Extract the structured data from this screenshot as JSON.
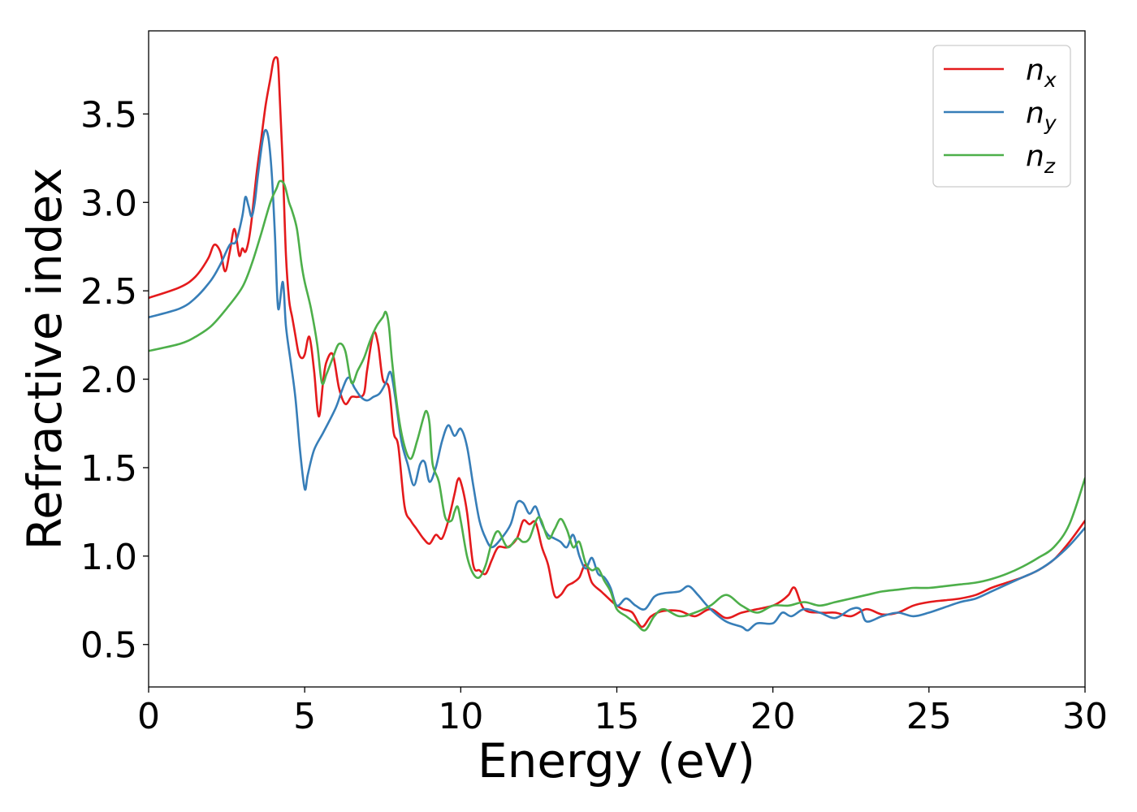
{
  "chart_data": {
    "type": "line",
    "xlabel": "Energy (eV)",
    "ylabel": "Refractive index",
    "xlim": [
      0,
      30
    ],
    "ylim": [
      0.26,
      3.97
    ],
    "xticks": [
      0,
      5,
      10,
      15,
      20,
      25,
      30
    ],
    "xtick_labels": [
      "0",
      "5",
      "10",
      "15",
      "20",
      "25",
      "30"
    ],
    "yticks": [
      0.5,
      1.0,
      1.5,
      2.0,
      2.5,
      3.0,
      3.5
    ],
    "ytick_labels": [
      "0.5",
      "1.0",
      "1.5",
      "2.0",
      "2.5",
      "3.0",
      "3.5"
    ],
    "legend_position": "top-right",
    "grid": false,
    "series": [
      {
        "name": "n",
        "subscript": "x",
        "color": "#e41a1c",
        "x": [
          0,
          1,
          1.5,
          1.9,
          2.1,
          2.3,
          2.45,
          2.6,
          2.75,
          2.9,
          3.0,
          3.1,
          3.2,
          3.3,
          3.45,
          3.6,
          3.75,
          3.9,
          4.0,
          4.1,
          4.15,
          4.2,
          4.3,
          4.4,
          4.5,
          4.6,
          4.7,
          4.8,
          4.9,
          5.0,
          5.15,
          5.3,
          5.45,
          5.6,
          5.7,
          5.9,
          6.1,
          6.3,
          6.5,
          6.7,
          6.9,
          7.0,
          7.2,
          7.35,
          7.5,
          7.7,
          7.85,
          8.0,
          8.2,
          8.4,
          8.6,
          8.8,
          9.0,
          9.2,
          9.4,
          9.6,
          9.8,
          9.9,
          10.0,
          10.2,
          10.4,
          10.6,
          10.8,
          11.0,
          11.2,
          11.5,
          11.8,
          12.0,
          12.2,
          12.4,
          12.6,
          12.8,
          13.0,
          13.2,
          13.4,
          13.6,
          13.8,
          14.0,
          14.2,
          14.5,
          14.8,
          15.0,
          15.2,
          15.5,
          15.8,
          16.1,
          16.5,
          17.0,
          17.5,
          18.0,
          18.5,
          19.0,
          19.5,
          20.0,
          20.3,
          20.5,
          20.7,
          21.0,
          21.5,
          22.0,
          22.5,
          23.0,
          23.5,
          24.0,
          24.5,
          25.0,
          25.5,
          26.0,
          26.5,
          27.0,
          27.5,
          28.0,
          28.5,
          29.0,
          29.5,
          30.0
        ],
        "y": [
          2.46,
          2.52,
          2.58,
          2.68,
          2.76,
          2.72,
          2.61,
          2.72,
          2.85,
          2.7,
          2.74,
          2.72,
          2.78,
          2.9,
          3.15,
          3.35,
          3.55,
          3.7,
          3.8,
          3.82,
          3.78,
          3.6,
          3.2,
          2.7,
          2.45,
          2.35,
          2.25,
          2.15,
          2.12,
          2.14,
          2.24,
          2.05,
          1.79,
          2.0,
          2.1,
          2.14,
          1.95,
          1.86,
          1.9,
          1.9,
          1.92,
          2.05,
          2.26,
          2.2,
          2.0,
          1.95,
          1.7,
          1.62,
          1.28,
          1.2,
          1.15,
          1.1,
          1.07,
          1.12,
          1.1,
          1.2,
          1.35,
          1.43,
          1.42,
          1.25,
          0.95,
          0.92,
          0.9,
          0.98,
          1.05,
          1.05,
          1.1,
          1.2,
          1.18,
          1.19,
          1.05,
          0.95,
          0.78,
          0.78,
          0.83,
          0.85,
          0.88,
          0.95,
          0.85,
          0.8,
          0.75,
          0.72,
          0.7,
          0.68,
          0.6,
          0.66,
          0.69,
          0.69,
          0.66,
          0.7,
          0.65,
          0.68,
          0.7,
          0.72,
          0.75,
          0.78,
          0.82,
          0.7,
          0.68,
          0.68,
          0.66,
          0.7,
          0.67,
          0.68,
          0.72,
          0.74,
          0.75,
          0.76,
          0.78,
          0.82,
          0.85,
          0.88,
          0.92,
          0.98,
          1.08,
          1.2
        ]
      },
      {
        "name": "n",
        "subscript": "y",
        "color": "#377eb8",
        "x": [
          0,
          1,
          1.5,
          2.0,
          2.3,
          2.6,
          2.8,
          3.0,
          3.1,
          3.2,
          3.3,
          3.4,
          3.5,
          3.65,
          3.75,
          3.85,
          3.95,
          4.05,
          4.15,
          4.3,
          4.4,
          4.55,
          4.7,
          4.85,
          5.0,
          5.1,
          5.3,
          5.6,
          6.0,
          6.2,
          6.4,
          6.6,
          6.8,
          7.0,
          7.2,
          7.4,
          7.6,
          7.75,
          7.9,
          8.1,
          8.3,
          8.5,
          8.7,
          8.85,
          9.0,
          9.2,
          9.4,
          9.6,
          9.8,
          10.0,
          10.2,
          10.4,
          10.6,
          10.8,
          11.0,
          11.3,
          11.6,
          11.8,
          12.0,
          12.2,
          12.4,
          12.6,
          12.8,
          13.0,
          13.2,
          13.4,
          13.6,
          13.8,
          14.0,
          14.2,
          14.4,
          14.6,
          14.8,
          15.0,
          15.3,
          15.6,
          15.9,
          16.2,
          16.5,
          17.0,
          17.3,
          17.6,
          18.0,
          18.5,
          19.0,
          19.2,
          19.5,
          20.0,
          20.3,
          20.6,
          21.0,
          21.5,
          22.0,
          22.5,
          22.8,
          23.0,
          23.5,
          24.0,
          24.5,
          25.0,
          25.5,
          26.0,
          26.5,
          27.0,
          27.5,
          28.0,
          28.5,
          29.0,
          29.5,
          30.0
        ],
        "y": [
          2.35,
          2.4,
          2.46,
          2.56,
          2.65,
          2.76,
          2.78,
          2.92,
          3.03,
          2.98,
          2.92,
          3.0,
          3.15,
          3.35,
          3.41,
          3.35,
          3.15,
          2.8,
          2.4,
          2.55,
          2.3,
          2.1,
          1.9,
          1.6,
          1.38,
          1.46,
          1.6,
          1.7,
          1.84,
          1.94,
          2.01,
          1.95,
          1.9,
          1.88,
          1.9,
          1.92,
          1.98,
          2.04,
          1.9,
          1.65,
          1.52,
          1.4,
          1.52,
          1.53,
          1.42,
          1.5,
          1.65,
          1.74,
          1.68,
          1.72,
          1.62,
          1.4,
          1.2,
          1.1,
          1.05,
          1.1,
          1.18,
          1.3,
          1.3,
          1.24,
          1.28,
          1.18,
          1.12,
          1.1,
          1.08,
          1.05,
          1.12,
          1.0,
          0.93,
          0.99,
          0.9,
          0.88,
          0.82,
          0.72,
          0.76,
          0.72,
          0.7,
          0.77,
          0.79,
          0.8,
          0.83,
          0.78,
          0.7,
          0.63,
          0.6,
          0.58,
          0.62,
          0.62,
          0.68,
          0.66,
          0.7,
          0.68,
          0.65,
          0.7,
          0.7,
          0.63,
          0.66,
          0.68,
          0.66,
          0.68,
          0.71,
          0.74,
          0.76,
          0.8,
          0.84,
          0.88,
          0.92,
          0.98,
          1.06,
          1.16
        ]
      },
      {
        "name": "n",
        "subscript": "z",
        "color": "#4daf4a",
        "x": [
          0,
          1,
          1.5,
          2.0,
          2.5,
          3.0,
          3.3,
          3.6,
          3.9,
          4.1,
          4.2,
          4.35,
          4.5,
          4.6,
          4.75,
          4.9,
          5.0,
          5.2,
          5.4,
          5.55,
          5.7,
          5.9,
          6.1,
          6.3,
          6.5,
          6.7,
          6.9,
          7.1,
          7.3,
          7.5,
          7.6,
          7.7,
          7.8,
          8.0,
          8.2,
          8.4,
          8.6,
          8.8,
          8.9,
          9.0,
          9.1,
          9.3,
          9.5,
          9.7,
          9.8,
          9.9,
          10.0,
          10.2,
          10.4,
          10.6,
          10.8,
          11.0,
          11.2,
          11.5,
          11.8,
          12.0,
          12.2,
          12.5,
          12.8,
          13.0,
          13.2,
          13.4,
          13.6,
          13.8,
          14.0,
          14.2,
          14.4,
          14.6,
          14.8,
          15.0,
          15.3,
          15.6,
          15.9,
          16.2,
          16.5,
          17.0,
          17.5,
          18.0,
          18.5,
          19.0,
          19.5,
          20.0,
          20.5,
          21.0,
          21.5,
          22.0,
          22.5,
          23.0,
          23.5,
          24.0,
          24.5,
          25.0,
          25.5,
          26.0,
          26.5,
          27.0,
          27.5,
          28.0,
          28.5,
          29.0,
          29.5,
          30.0
        ],
        "y": [
          2.16,
          2.2,
          2.24,
          2.3,
          2.4,
          2.52,
          2.65,
          2.82,
          3.0,
          3.08,
          3.12,
          3.1,
          3.0,
          2.95,
          2.85,
          2.65,
          2.55,
          2.4,
          2.2,
          1.98,
          2.03,
          2.12,
          2.2,
          2.16,
          1.98,
          2.05,
          2.12,
          2.22,
          2.3,
          2.35,
          2.38,
          2.3,
          2.1,
          1.8,
          1.62,
          1.55,
          1.65,
          1.78,
          1.82,
          1.75,
          1.52,
          1.42,
          1.22,
          1.2,
          1.25,
          1.28,
          1.2,
          1.0,
          0.9,
          0.88,
          0.95,
          1.08,
          1.14,
          1.05,
          1.1,
          1.08,
          1.1,
          1.22,
          1.1,
          1.15,
          1.21,
          1.15,
          1.05,
          1.08,
          0.96,
          0.92,
          0.93,
          0.86,
          0.8,
          0.7,
          0.66,
          0.62,
          0.58,
          0.66,
          0.7,
          0.66,
          0.68,
          0.72,
          0.78,
          0.72,
          0.68,
          0.72,
          0.72,
          0.74,
          0.72,
          0.74,
          0.76,
          0.78,
          0.8,
          0.81,
          0.82,
          0.82,
          0.83,
          0.84,
          0.85,
          0.87,
          0.9,
          0.94,
          0.99,
          1.05,
          1.18,
          1.44
        ]
      }
    ]
  }
}
